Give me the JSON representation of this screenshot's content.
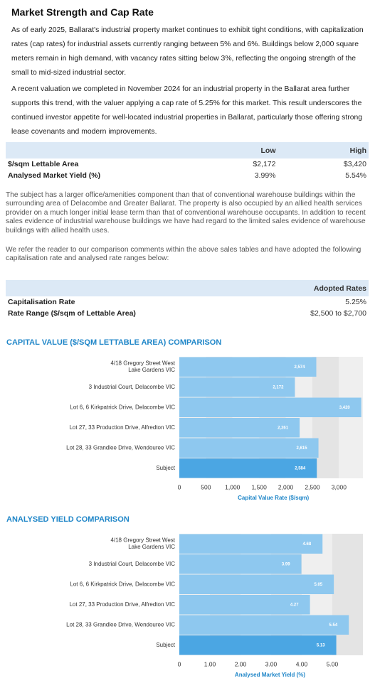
{
  "title": "Market Strength and Cap Rate",
  "paragraphs": [
    "As of early 2025, Ballarat's industrial property market continues to exhibit tight conditions, with capitalization rates (cap rates) for industrial assets currently ranging between 5% and 6%. Buildings below 2,000 square meters remain in high demand, with vacancy rates sitting below 3%, reflecting the ongoing strength of the small to mid-sized industrial sector.",
    "A recent valuation we completed in November 2024 for an industrial property in the Ballarat area further supports this trend, with the valuer applying a cap rate of 5.25% for this market. This result underscores the continued investor appetite for well-located industrial properties in Ballarat, particularly those offering strong lease covenants and modern improvements."
  ],
  "table1": {
    "columns": [
      "Low",
      "High"
    ],
    "rows": [
      [
        "$/sqm Lettable Area",
        "$2,172",
        "$3,420"
      ],
      [
        "Analysed Market Yield (%)",
        "3.99%",
        "5.54%"
      ]
    ]
  },
  "notes": [
    "The subject has a larger office/amenities component than that of conventional warehouse buildings within the surrounding area of Delacombe and Greater Ballarat. The property is also occupied by an allied health services provider on a much longer initial lease term than that of conventional warehouse occupants. In addition to recent sales evidence of industrial warehouse buildings we have had regard to the limited sales evidence of warehouse buildings with allied health uses.",
    "We refer the reader to our comparison comments within the above sales tables and have adopted the following capitalisation rate and analysed rate ranges below:"
  ],
  "table2": {
    "columns": [
      "Adopted Rates"
    ],
    "rows": [
      [
        "Capitalisation Rate",
        "5.25%"
      ],
      [
        "Rate Range ($/sqm of Lettable Area)",
        "$2,500 to $2,700"
      ]
    ]
  },
  "chart_data": [
    {
      "type": "bar",
      "orientation": "horizontal",
      "title": "CAPITAL VALUE ($/SQM LETTABLE AREA) COMPARISON",
      "x_label": "Capital Value Rate ($/sqm)",
      "categories": [
        "4/18 Gregory Street West\nLake Gardens VIC",
        "3 Industrial Court, Delacombe VIC",
        "Lot 6, 6 Kirkpatrick Drive, Delacombe VIC",
        "Lot 27, 33 Production Drive, Alfredton VIC",
        "Lot 28, 33 Grandlee Drive, Wendouree VIC",
        "Subject"
      ],
      "values": [
        2574,
        2172,
        3420,
        2261,
        2615,
        2584
      ],
      "value_labels": [
        "2,574",
        "2,172",
        "3,420",
        "2,261",
        "2,615",
        "2,584"
      ],
      "colors": [
        "#8ec8ef",
        "#8ec8ef",
        "#8ec8ef",
        "#8ec8ef",
        "#8ec8ef",
        "#4ba6e3"
      ],
      "xlim": [
        0,
        3450
      ],
      "xticks": [
        0,
        500,
        {
          "value": 1000,
          "label": "1,000"
        },
        {
          "value": 1500,
          "label": "1,500"
        },
        {
          "value": 2000,
          "label": "2,000"
        },
        {
          "value": 2500,
          "label": "2,500"
        },
        {
          "value": 3000,
          "label": "3,000"
        }
      ]
    },
    {
      "type": "bar",
      "orientation": "horizontal",
      "title": "ANALYSED YIELD COMPARISON",
      "x_label": "Analysed Market Yield (%)",
      "categories": [
        "4/18 Gregory Street West\nLake Gardens VIC",
        "3 Industrial Court, Delacombe VIC",
        "Lot 6, 6 Kirkpatrick Drive, Delacombe VIC",
        "Lot 27, 33 Production Drive, Alfredton VIC",
        "Lot 28, 33 Grandlee Drive, Wendouree VIC",
        "Subject"
      ],
      "values": [
        4.68,
        3.99,
        5.05,
        4.27,
        5.54,
        5.13
      ],
      "colors": [
        "#8ec8ef",
        "#8ec8ef",
        "#8ec8ef",
        "#8ec8ef",
        "#8ec8ef",
        "#4ba6e3"
      ],
      "xlim": [
        0,
        6
      ],
      "xticks": [
        0,
        {
          "value": 1,
          "label": "1.00"
        },
        {
          "value": 2,
          "label": "2.00"
        },
        {
          "value": 3,
          "label": "3.00"
        },
        {
          "value": 4,
          "label": "4.00"
        },
        {
          "value": 5,
          "label": "5.00"
        }
      ]
    }
  ]
}
